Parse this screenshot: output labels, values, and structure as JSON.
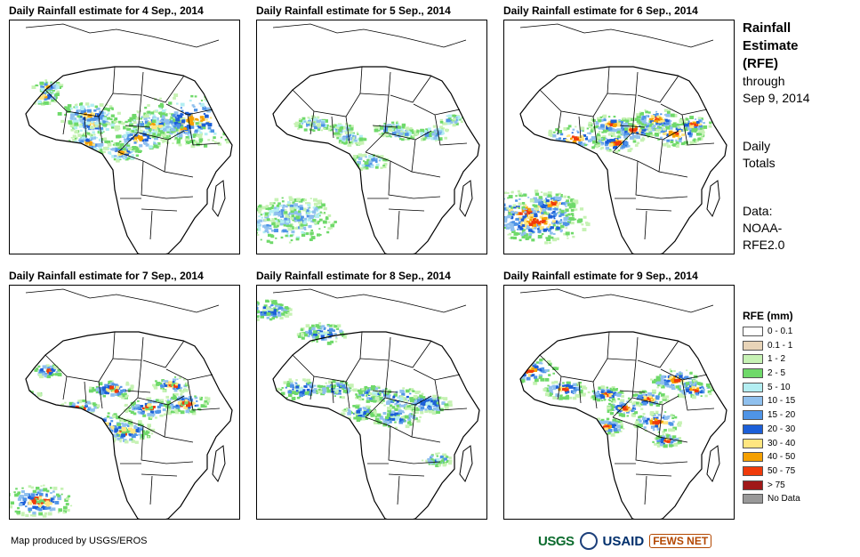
{
  "panels": [
    {
      "title": "Daily Rainfall estimate for 4 Sep., 2014"
    },
    {
      "title": "Daily Rainfall estimate for 5 Sep., 2014"
    },
    {
      "title": "Daily Rainfall estimate for 6 Sep., 2014"
    },
    {
      "title": "Daily Rainfall estimate for 7 Sep., 2014"
    },
    {
      "title": "Daily Rainfall estimate for 8 Sep., 2014"
    },
    {
      "title": "Daily Rainfall estimate for 9 Sep., 2014"
    }
  ],
  "side": {
    "title_line1": "Rainfall",
    "title_line2": "Estimate",
    "title_line3": "(RFE)",
    "through_line1": "through",
    "through_line2": "Sep 9, 2014",
    "daily_line1": "Daily",
    "daily_line2": "Totals",
    "data_line1": "Data:",
    "data_line2": "NOAA-",
    "data_line3": "RFE2.0"
  },
  "legend": {
    "title": "RFE (mm)",
    "items": [
      {
        "label": "0 - 0.1",
        "color": "#ffffff"
      },
      {
        "label": "0.1 - 1",
        "color": "#e8d4b8"
      },
      {
        "label": "1 - 2",
        "color": "#c6f2b4"
      },
      {
        "label": "2 - 5",
        "color": "#6fd96a"
      },
      {
        "label": "5 - 10",
        "color": "#b3eef2"
      },
      {
        "label": "10 - 15",
        "color": "#8fc0ee"
      },
      {
        "label": "15 - 20",
        "color": "#4f94e6"
      },
      {
        "label": "20 - 30",
        "color": "#1c5fd8"
      },
      {
        "label": "30 - 40",
        "color": "#ffe680"
      },
      {
        "label": "40 - 50",
        "color": "#f5a000"
      },
      {
        "label": "50 - 75",
        "color": "#f03a0a"
      },
      {
        "label": "> 75",
        "color": "#a01818"
      },
      {
        "label": "No Data",
        "color": "#999999"
      }
    ]
  },
  "footer": {
    "credit": "Map produced by USGS/EROS",
    "logo_usgs": "USGS",
    "logo_usaid": "USAID",
    "logo_fews": "FEWS NET"
  }
}
